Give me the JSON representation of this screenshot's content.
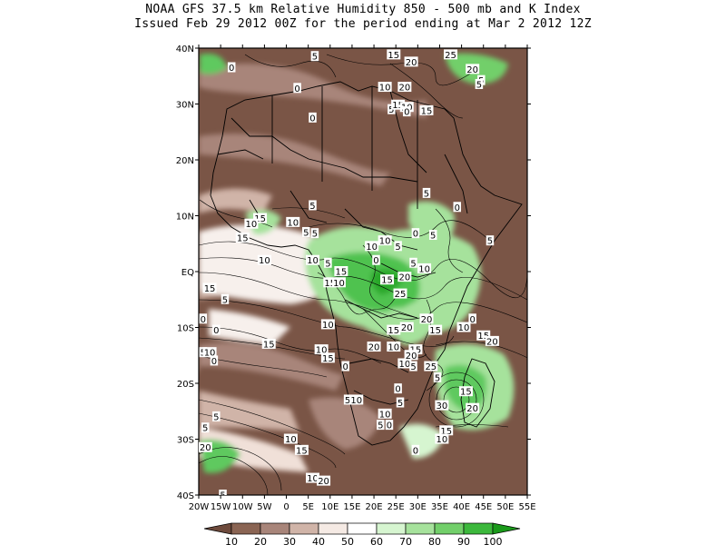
{
  "title": {
    "line1": "NOAA GFS 37.5 km Relative Humidity 850 - 500 mb and K Index",
    "line2": "Issued Feb 29 2012 00Z for the period ending at Mar 2 2012 12Z"
  },
  "axes": {
    "lat_labels": [
      "40N",
      "30N",
      "20N",
      "10N",
      "EQ",
      "10S",
      "20S",
      "30S",
      "40S"
    ],
    "lon_labels": [
      "20W",
      "15W",
      "10W",
      "5W",
      "0",
      "5E",
      "10E",
      "15E",
      "20E",
      "25E",
      "30E",
      "35E",
      "40E",
      "45E",
      "50E",
      "55E"
    ]
  },
  "colorbar": {
    "labels": [
      "10",
      "20",
      "30",
      "40",
      "50",
      "60",
      "70",
      "80",
      "90",
      "100"
    ],
    "colors": [
      "#6e4a3c",
      "#8a6453",
      "#a8857a",
      "#d0b4a8",
      "#f5eae4",
      "#ffffff",
      "#d6f5d0",
      "#a6e29c",
      "#72cf6a",
      "#3cb83c",
      "#1a9a1a"
    ]
  },
  "kindex_labels": [
    {
      "text": "0",
      "lon": -12.5,
      "lat": 36.5
    },
    {
      "text": "5",
      "lon": 6.5,
      "lat": 38.5
    },
    {
      "text": "15",
      "lon": 24.5,
      "lat": 38.8
    },
    {
      "text": "20",
      "lon": 28.5,
      "lat": 37.5
    },
    {
      "text": "25",
      "lon": 37.5,
      "lat": 38.8
    },
    {
      "text": "20",
      "lon": 42.5,
      "lat": 36.2
    },
    {
      "text": "5",
      "lon": 44.5,
      "lat": 34.2
    },
    {
      "text": "0",
      "lon": 2.5,
      "lat": 32.8
    },
    {
      "text": "10",
      "lon": 22.5,
      "lat": 33.0
    },
    {
      "text": "20",
      "lon": 27.0,
      "lat": 33.0
    },
    {
      "text": "5",
      "lon": 44.0,
      "lat": 33.5
    },
    {
      "text": "5",
      "lon": 24.0,
      "lat": 29.0
    },
    {
      "text": "15",
      "lon": 25.5,
      "lat": 29.8
    },
    {
      "text": "10",
      "lon": 27.5,
      "lat": 29.4
    },
    {
      "text": "0",
      "lon": 27.5,
      "lat": 28.6
    },
    {
      "text": "15",
      "lon": 32.0,
      "lat": 28.8
    },
    {
      "text": "0",
      "lon": 6.0,
      "lat": 27.5
    },
    {
      "text": "5",
      "lon": 6.0,
      "lat": 11.8
    },
    {
      "text": "5",
      "lon": 32.0,
      "lat": 14.0
    },
    {
      "text": "0",
      "lon": 39.0,
      "lat": 11.5
    },
    {
      "text": "15",
      "lon": -6.0,
      "lat": 9.5
    },
    {
      "text": "10",
      "lon": -8.0,
      "lat": 8.5
    },
    {
      "text": "10",
      "lon": 1.5,
      "lat": 8.8
    },
    {
      "text": "5",
      "lon": 4.5,
      "lat": 7.0
    },
    {
      "text": "5",
      "lon": 6.5,
      "lat": 6.8
    },
    {
      "text": "15",
      "lon": -10.0,
      "lat": 6.0
    },
    {
      "text": "10",
      "lon": 19.5,
      "lat": 4.5
    },
    {
      "text": "10",
      "lon": 22.5,
      "lat": 5.5
    },
    {
      "text": "5",
      "lon": 25.5,
      "lat": 4.5
    },
    {
      "text": "0",
      "lon": 29.5,
      "lat": 6.8
    },
    {
      "text": "5",
      "lon": 33.5,
      "lat": 6.5
    },
    {
      "text": "5",
      "lon": 46.5,
      "lat": 5.5
    },
    {
      "text": "10",
      "lon": -5.0,
      "lat": 2.0
    },
    {
      "text": "10",
      "lon": 6.0,
      "lat": 2.0
    },
    {
      "text": "5",
      "lon": 9.5,
      "lat": 1.5
    },
    {
      "text": "0",
      "lon": 20.5,
      "lat": 2.0
    },
    {
      "text": "15",
      "lon": 12.5,
      "lat": 0.0
    },
    {
      "text": "15",
      "lon": 10.0,
      "lat": -2.0
    },
    {
      "text": "10",
      "lon": 12.0,
      "lat": -2.0
    },
    {
      "text": "20",
      "lon": 27.0,
      "lat": -1.0
    },
    {
      "text": "5",
      "lon": 29.0,
      "lat": 1.5
    },
    {
      "text": "10",
      "lon": 31.5,
      "lat": 0.5
    },
    {
      "text": "15",
      "lon": 23.0,
      "lat": -1.5
    },
    {
      "text": "25",
      "lon": 26.0,
      "lat": -4.0
    },
    {
      "text": "15",
      "lon": -17.5,
      "lat": -3.0
    },
    {
      "text": "5",
      "lon": -14.0,
      "lat": -5.0
    },
    {
      "text": "0",
      "lon": -19.0,
      "lat": -8.5
    },
    {
      "text": "0",
      "lon": -16.0,
      "lat": -10.5
    },
    {
      "text": "10",
      "lon": 9.5,
      "lat": -9.5
    },
    {
      "text": "15",
      "lon": 24.5,
      "lat": -10.5
    },
    {
      "text": "20",
      "lon": 27.5,
      "lat": -10.0
    },
    {
      "text": "20",
      "lon": 32.0,
      "lat": -8.5
    },
    {
      "text": "15",
      "lon": 34.0,
      "lat": -10.5
    },
    {
      "text": "10",
      "lon": 40.5,
      "lat": -10.0
    },
    {
      "text": "0",
      "lon": 42.5,
      "lat": -8.5
    },
    {
      "text": "15",
      "lon": -4.0,
      "lat": -13.0
    },
    {
      "text": "10",
      "lon": 8.0,
      "lat": -14.0
    },
    {
      "text": "20",
      "lon": 20.0,
      "lat": -13.5
    },
    {
      "text": "10",
      "lon": 24.5,
      "lat": -13.5
    },
    {
      "text": "15",
      "lon": 29.5,
      "lat": -14.0
    },
    {
      "text": "15",
      "lon": 45.0,
      "lat": -11.5
    },
    {
      "text": "20",
      "lon": 47.0,
      "lat": -12.5
    },
    {
      "text": "5",
      "lon": -19.0,
      "lat": -14.5
    },
    {
      "text": "10",
      "lon": -17.5,
      "lat": -14.5
    },
    {
      "text": "0",
      "lon": -16.5,
      "lat": -16.0
    },
    {
      "text": "15",
      "lon": 9.5,
      "lat": -15.5
    },
    {
      "text": "0",
      "lon": 13.5,
      "lat": -17.0
    },
    {
      "text": "10",
      "lon": 27.0,
      "lat": -16.5
    },
    {
      "text": "20",
      "lon": 28.5,
      "lat": -15.0
    },
    {
      "text": "5",
      "lon": 29.0,
      "lat": -17.0
    },
    {
      "text": "25",
      "lon": 33.0,
      "lat": -17.0
    },
    {
      "text": "5",
      "lon": 34.5,
      "lat": -19.0
    },
    {
      "text": "0",
      "lon": 25.5,
      "lat": -21.0
    },
    {
      "text": "5",
      "lon": 14.0,
      "lat": -23.0
    },
    {
      "text": "10",
      "lon": 16.0,
      "lat": -23.0
    },
    {
      "text": "10",
      "lon": 22.5,
      "lat": -25.5
    },
    {
      "text": "5",
      "lon": 26.0,
      "lat": -23.5
    },
    {
      "text": "30",
      "lon": 35.5,
      "lat": -24.0
    },
    {
      "text": "20",
      "lon": 42.5,
      "lat": -24.5
    },
    {
      "text": "15",
      "lon": 41.0,
      "lat": -21.5
    },
    {
      "text": "5",
      "lon": -16.0,
      "lat": -26.0
    },
    {
      "text": "5",
      "lon": -18.5,
      "lat": -28.0
    },
    {
      "text": "5",
      "lon": 21.5,
      "lat": -27.5
    },
    {
      "text": "0",
      "lon": 23.5,
      "lat": -27.5
    },
    {
      "text": "15",
      "lon": 36.5,
      "lat": -28.5
    },
    {
      "text": "10",
      "lon": 35.5,
      "lat": -30.0
    },
    {
      "text": "10",
      "lon": 1.0,
      "lat": -30.0
    },
    {
      "text": "20",
      "lon": -18.5,
      "lat": -31.5
    },
    {
      "text": "15",
      "lon": 3.5,
      "lat": -32.0
    },
    {
      "text": "0",
      "lon": 29.5,
      "lat": -32.0
    },
    {
      "text": "10",
      "lon": 6.0,
      "lat": -37.0
    },
    {
      "text": "20",
      "lon": 8.5,
      "lat": -37.5
    },
    {
      "text": "5",
      "lon": -14.5,
      "lat": -40.0
    }
  ]
}
